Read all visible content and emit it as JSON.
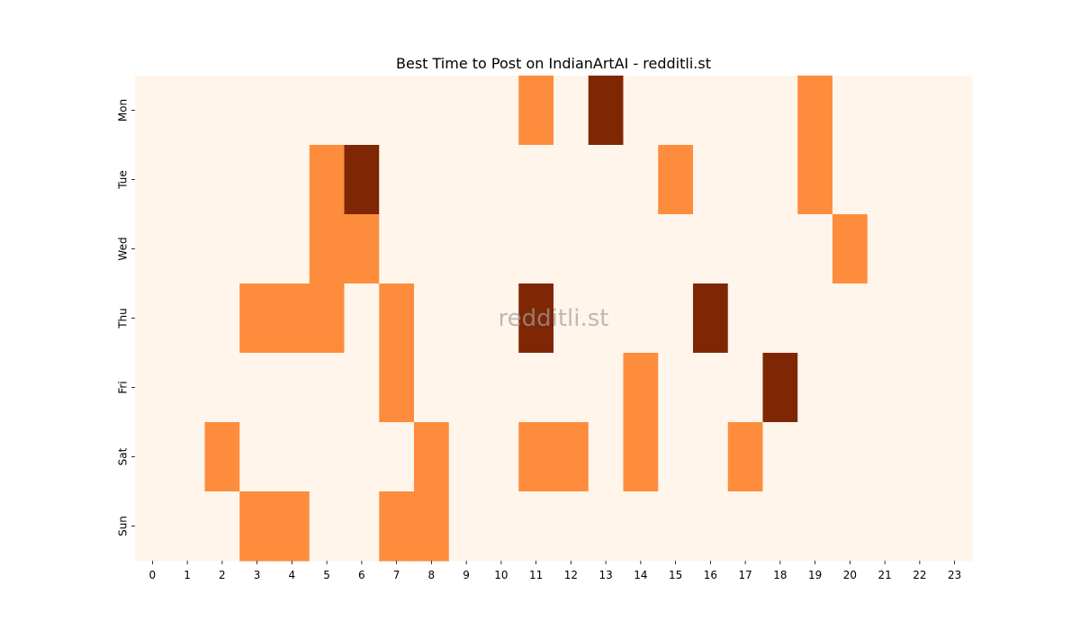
{
  "chart_data": {
    "type": "heatmap",
    "title": "Best Time to Post on IndianArtAI - redditli.st",
    "watermark": "redditli.st",
    "xlabel": "",
    "ylabel": "",
    "x": [
      "0",
      "1",
      "2",
      "3",
      "4",
      "5",
      "6",
      "7",
      "8",
      "9",
      "10",
      "11",
      "12",
      "13",
      "14",
      "15",
      "16",
      "17",
      "18",
      "19",
      "20",
      "21",
      "22",
      "23"
    ],
    "y": [
      "Mon",
      "Tue",
      "Wed",
      "Thu",
      "Fri",
      "Sat",
      "Sun"
    ],
    "colorbar": false,
    "colormap": "Oranges",
    "colors": {
      "0": "#fff5eb",
      "1": "#fd8d3c",
      "2": "#7f2704"
    },
    "values": [
      [
        0,
        0,
        0,
        0,
        0,
        0,
        0,
        0,
        0,
        0,
        0,
        1,
        0,
        2,
        0,
        0,
        0,
        0,
        0,
        1,
        0,
        0,
        0,
        0
      ],
      [
        0,
        0,
        0,
        0,
        0,
        1,
        2,
        0,
        0,
        0,
        0,
        0,
        0,
        0,
        0,
        1,
        0,
        0,
        0,
        1,
        0,
        0,
        0,
        0
      ],
      [
        0,
        0,
        0,
        0,
        0,
        1,
        1,
        0,
        0,
        0,
        0,
        0,
        0,
        0,
        0,
        0,
        0,
        0,
        0,
        0,
        1,
        0,
        0,
        0
      ],
      [
        0,
        0,
        0,
        1,
        1,
        1,
        0,
        1,
        0,
        0,
        0,
        2,
        0,
        0,
        0,
        0,
        2,
        0,
        0,
        0,
        0,
        0,
        0,
        0
      ],
      [
        0,
        0,
        0,
        0,
        0,
        0,
        0,
        1,
        0,
        0,
        0,
        0,
        0,
        0,
        1,
        0,
        0,
        0,
        2,
        0,
        0,
        0,
        0,
        0
      ],
      [
        0,
        0,
        1,
        0,
        0,
        0,
        0,
        0,
        1,
        0,
        0,
        1,
        1,
        0,
        1,
        0,
        0,
        1,
        0,
        0,
        0,
        0,
        0,
        0
      ],
      [
        0,
        0,
        0,
        1,
        1,
        0,
        0,
        1,
        1,
        0,
        0,
        0,
        0,
        0,
        0,
        0,
        0,
        0,
        0,
        0,
        0,
        0,
        0,
        0
      ]
    ]
  }
}
